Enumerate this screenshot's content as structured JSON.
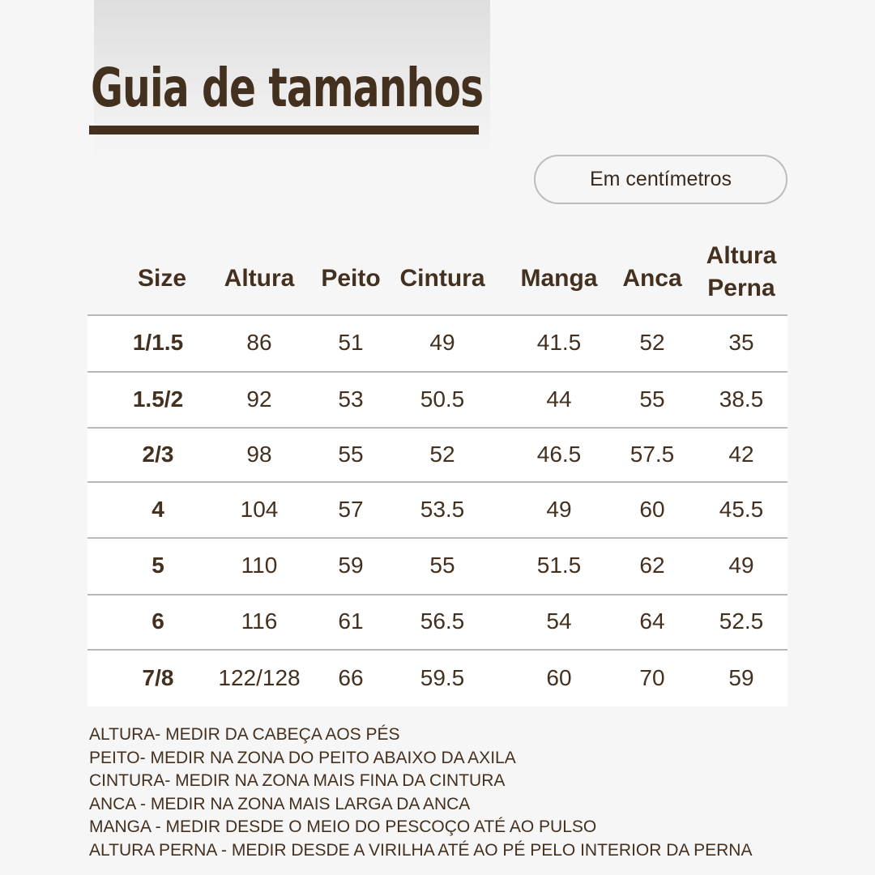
{
  "title": "Guia de tamanhos",
  "unit_label": "Em centímetros",
  "colors": {
    "brand": "#44301f",
    "background": "#f6f6f6"
  },
  "table": {
    "headers": [
      "Size",
      "Altura",
      "Peito",
      "Cintura",
      "Manga",
      "Anca",
      "Altura Perna"
    ],
    "rows": [
      [
        "1/1.5",
        "86",
        "51",
        "49",
        "41.5",
        "52",
        "35"
      ],
      [
        "1.5/2",
        "92",
        "53",
        "50.5",
        "44",
        "55",
        "38.5"
      ],
      [
        "2/3",
        "98",
        "55",
        "52",
        "46.5",
        "57.5",
        "42"
      ],
      [
        "4",
        "104",
        "57",
        "53.5",
        "49",
        "60",
        "45.5"
      ],
      [
        "5",
        "110",
        "59",
        "55",
        "51.5",
        "62",
        "49"
      ],
      [
        "6",
        "116",
        "61",
        "56.5",
        "54",
        "64",
        "52.5"
      ],
      [
        "7/8",
        "122/128",
        "66",
        "59.5",
        "60",
        "70",
        "59"
      ]
    ]
  },
  "notes": [
    "ALTURA- MEDIR DA CABEÇA AOS PÉS",
    "PEITO- MEDIR NA ZONA DO PEITO ABAIXO DA AXILA",
    "CINTURA- MEDIR NA ZONA MAIS FINA DA CINTURA",
    "ANCA - MEDIR NA ZONA MAIS LARGA DA ANCA",
    "MANGA - MEDIR DESDE O MEIO DO PESCOÇO ATÉ AO PULSO",
    "ALTURA PERNA - MEDIR DESDE A VIRILHA ATÉ AO PÉ PELO INTERIOR DA PERNA"
  ]
}
